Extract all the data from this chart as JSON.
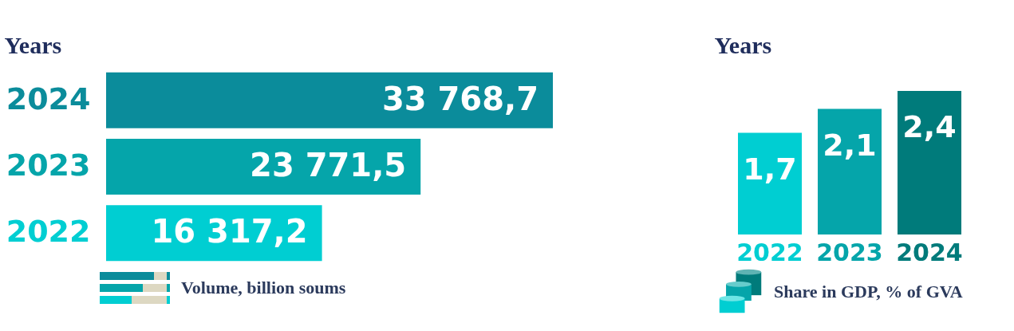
{
  "chart_data": [
    {
      "type": "bar",
      "orientation": "horizontal",
      "ylabel": "Years",
      "xlabel": "Volume, billion soums",
      "categories": [
        "2024",
        "2023",
        "2022"
      ],
      "values": [
        33768.7,
        23771.5,
        16317.2
      ],
      "colors": [
        "#0b8c9b",
        "#05a5aa",
        "#00ced2"
      ],
      "value_labels": [
        "33 768,7",
        "23 771,5",
        "16 317,2"
      ]
    },
    {
      "type": "bar",
      "ylabel": "Years",
      "xlabel": "Share in GDP, % of GVA",
      "categories": [
        "2022",
        "2023",
        "2024"
      ],
      "values": [
        1.7,
        2.1,
        2.4
      ],
      "colors": [
        "#00ced2",
        "#05a5aa",
        "#007b7b"
      ],
      "value_labels": [
        "1,7",
        "2,1",
        "2,4"
      ]
    }
  ]
}
